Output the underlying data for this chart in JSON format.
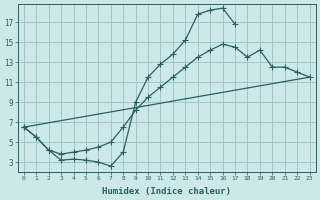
{
  "xlabel": "Humidex (Indice chaleur)",
  "ylabel": "",
  "background_color": "#cde8e8",
  "grid_color": "#a0c8c8",
  "line_color": "#2a6060",
  "xlim": [
    -0.5,
    23.5
  ],
  "ylim": [
    2.0,
    18.8
  ],
  "xticks": [
    0,
    1,
    2,
    3,
    4,
    5,
    6,
    7,
    8,
    9,
    10,
    11,
    12,
    13,
    14,
    15,
    16,
    17,
    18,
    19,
    20,
    21,
    22,
    23
  ],
  "yticks": [
    3,
    5,
    7,
    9,
    11,
    13,
    15,
    17
  ],
  "line1_x": [
    0,
    1,
    2,
    3,
    4,
    5,
    6,
    7,
    8,
    9,
    10,
    11,
    12,
    13,
    14,
    15,
    16,
    17
  ],
  "line1_y": [
    6.5,
    5.5,
    4.2,
    3.2,
    3.3,
    3.2,
    3.0,
    2.6,
    4.0,
    9.0,
    11.5,
    12.8,
    13.8,
    15.2,
    17.8,
    18.2,
    18.4,
    16.8
  ],
  "line2_x": [
    0,
    1,
    2,
    3,
    4,
    5,
    6,
    7,
    8,
    9,
    10,
    11,
    12,
    13,
    14,
    15,
    16,
    17,
    18,
    19,
    20,
    21,
    22,
    23
  ],
  "line2_y": [
    6.5,
    5.5,
    4.2,
    3.8,
    4.0,
    4.2,
    4.5,
    5.0,
    6.5,
    8.2,
    9.5,
    10.5,
    11.5,
    12.5,
    13.5,
    14.2,
    14.8,
    14.5,
    13.5,
    14.2,
    12.5,
    12.5,
    12.0,
    11.5
  ],
  "line3_x": [
    0,
    23
  ],
  "line3_y": [
    6.5,
    11.5
  ]
}
